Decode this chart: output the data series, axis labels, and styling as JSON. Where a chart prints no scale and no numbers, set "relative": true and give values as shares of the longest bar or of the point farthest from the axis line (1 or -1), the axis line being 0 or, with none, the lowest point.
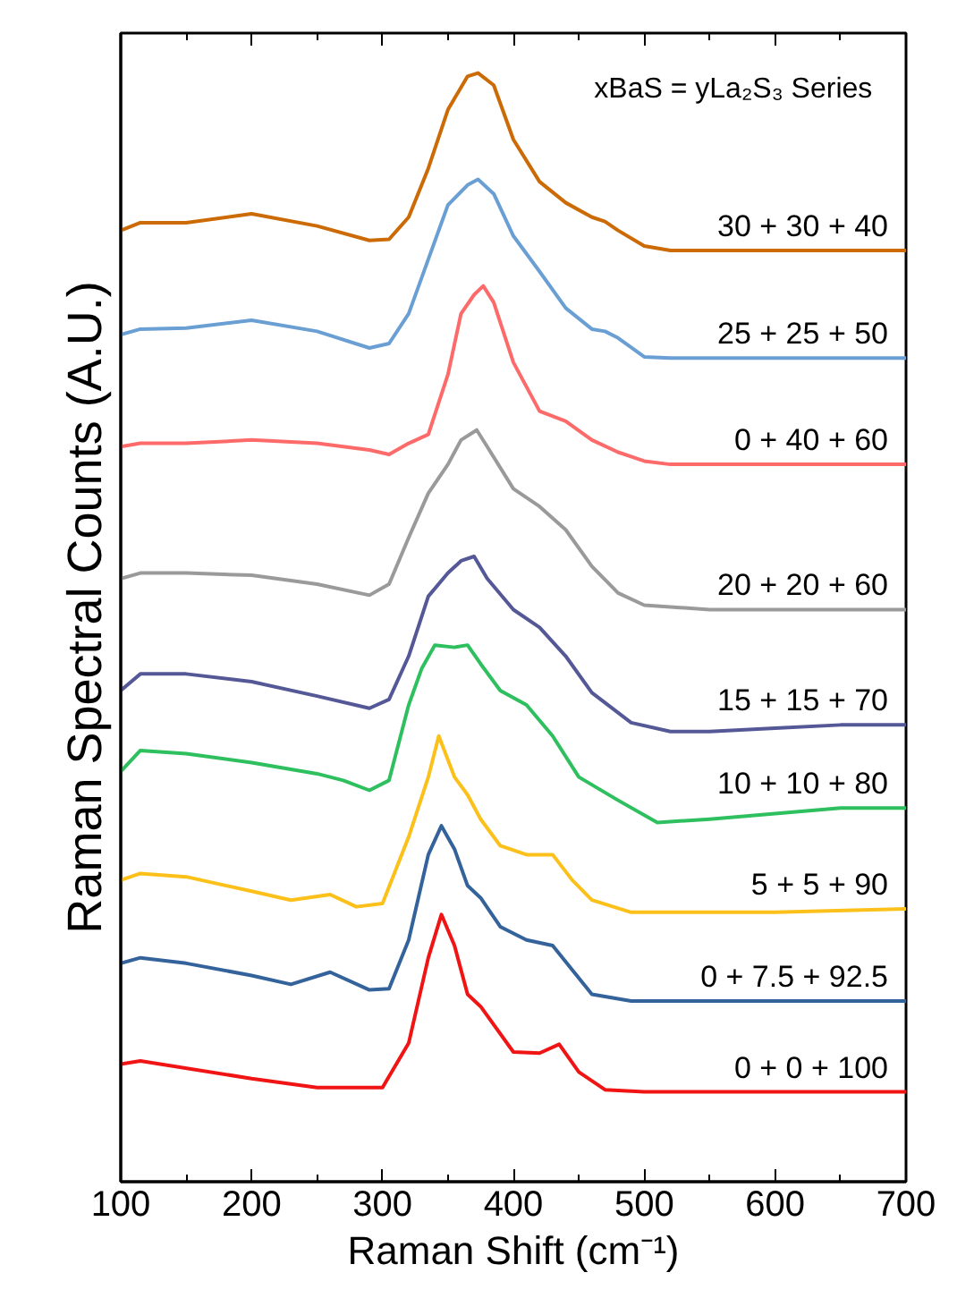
{
  "chart_data": {
    "type": "line",
    "relative": true,
    "xlabel": "Raman Shift (cm⁻¹)",
    "ylabel": "Raman Spectral Counts (A.U.)",
    "annotations": [
      "xBaS = yLa₂S₃ Series"
    ],
    "xlim": [
      100,
      700
    ],
    "xticks": [
      100,
      200,
      300,
      400,
      500,
      600,
      700
    ],
    "grid": false,
    "legend": false,
    "line_style": "solid",
    "marker": "none",
    "series": [
      {
        "name": "0 + 0 + 100",
        "color": "#f01414",
        "x": [
          100,
          115,
          200,
          250,
          300,
          320,
          335,
          345,
          355,
          365,
          375,
          400,
          420,
          435,
          450,
          470,
          500,
          600,
          700
        ],
        "values": [
          0.106,
          0.109,
          0.093,
          0.085,
          0.085,
          0.125,
          0.202,
          0.241,
          0.213,
          0.169,
          0.158,
          0.117,
          0.116,
          0.124,
          0.099,
          0.083,
          0.081,
          0.081,
          0.081
        ]
      },
      {
        "name": "0 + 7.5 + 92.5",
        "color": "#34639c",
        "x": [
          100,
          115,
          150,
          200,
          230,
          260,
          290,
          305,
          320,
          335,
          345,
          355,
          365,
          375,
          390,
          410,
          430,
          445,
          460,
          490,
          600,
          700
        ],
        "values": [
          0.197,
          0.202,
          0.197,
          0.186,
          0.178,
          0.189,
          0.173,
          0.174,
          0.218,
          0.295,
          0.321,
          0.3,
          0.267,
          0.256,
          0.23,
          0.218,
          0.213,
          0.191,
          0.169,
          0.163,
          0.163,
          0.163
        ]
      },
      {
        "name": "5 + 5 + 90",
        "color": "#fbc01a",
        "x": [
          100,
          115,
          150,
          200,
          230,
          260,
          280,
          300,
          320,
          335,
          343,
          355,
          365,
          375,
          390,
          410,
          430,
          445,
          460,
          490,
          600,
          700
        ],
        "values": [
          0.272,
          0.278,
          0.275,
          0.262,
          0.254,
          0.259,
          0.248,
          0.251,
          0.311,
          0.365,
          0.402,
          0.365,
          0.349,
          0.327,
          0.303,
          0.295,
          0.295,
          0.272,
          0.254,
          0.243,
          0.243,
          0.246
        ]
      },
      {
        "name": "10 + 10 + 80",
        "color": "#2ebf5e",
        "x": [
          100,
          115,
          150,
          200,
          250,
          270,
          290,
          305,
          320,
          330,
          340,
          355,
          365,
          375,
          390,
          410,
          430,
          450,
          480,
          510,
          550,
          600,
          650,
          700
        ],
        "values": [
          0.37,
          0.389,
          0.386,
          0.378,
          0.368,
          0.362,
          0.353,
          0.362,
          0.43,
          0.463,
          0.484,
          0.482,
          0.484,
          0.467,
          0.443,
          0.43,
          0.402,
          0.365,
          0.344,
          0.324,
          0.327,
          0.332,
          0.337,
          0.337
        ]
      },
      {
        "name": "15 + 15 + 70",
        "color": "#555897",
        "x": [
          100,
          115,
          150,
          200,
          250,
          290,
          305,
          320,
          335,
          350,
          360,
          370,
          380,
          400,
          420,
          440,
          460,
          490,
          520,
          550,
          600,
          650,
          700
        ],
        "values": [
          0.443,
          0.458,
          0.458,
          0.451,
          0.438,
          0.427,
          0.435,
          0.474,
          0.528,
          0.549,
          0.56,
          0.564,
          0.544,
          0.516,
          0.5,
          0.474,
          0.441,
          0.414,
          0.406,
          0.406,
          0.409,
          0.412,
          0.412
        ]
      },
      {
        "name": "20 + 20 + 60",
        "color": "#9a9a9a",
        "x": [
          100,
          115,
          150,
          200,
          250,
          290,
          305,
          320,
          335,
          350,
          360,
          372,
          380,
          400,
          420,
          440,
          460,
          480,
          500,
          550,
          600,
          700
        ],
        "values": [
          0.544,
          0.549,
          0.549,
          0.547,
          0.539,
          0.529,
          0.539,
          0.581,
          0.621,
          0.647,
          0.669,
          0.678,
          0.663,
          0.625,
          0.609,
          0.588,
          0.555,
          0.531,
          0.52,
          0.516,
          0.516,
          0.516
        ]
      },
      {
        "name": "0 + 40 + 60",
        "color": "#fd6a6a",
        "x": [
          100,
          115,
          150,
          200,
          250,
          290,
          305,
          320,
          335,
          350,
          360,
          370,
          377,
          385,
          400,
          420,
          440,
          460,
          480,
          500,
          520,
          600,
          700
        ],
        "values": [
          0.663,
          0.666,
          0.666,
          0.669,
          0.666,
          0.66,
          0.656,
          0.666,
          0.674,
          0.728,
          0.783,
          0.8,
          0.808,
          0.793,
          0.739,
          0.695,
          0.686,
          0.669,
          0.658,
          0.65,
          0.647,
          0.647,
          0.647
        ]
      },
      {
        "name": "25 + 25 + 50",
        "color": "#6a9fd4",
        "x": [
          100,
          115,
          150,
          200,
          250,
          290,
          305,
          320,
          335,
          350,
          365,
          373,
          385,
          400,
          420,
          440,
          460,
          470,
          480,
          500,
          520,
          600,
          700
        ],
        "values": [
          0.764,
          0.769,
          0.77,
          0.777,
          0.767,
          0.752,
          0.756,
          0.783,
          0.832,
          0.881,
          0.899,
          0.904,
          0.891,
          0.853,
          0.821,
          0.788,
          0.769,
          0.767,
          0.761,
          0.744,
          0.743,
          0.743,
          0.743
        ]
      },
      {
        "name": "30 + 30 + 40",
        "color": "#cc6a05",
        "x": [
          100,
          115,
          150,
          200,
          250,
          290,
          305,
          320,
          335,
          350,
          365,
          373,
          385,
          400,
          420,
          440,
          460,
          470,
          480,
          500,
          520,
          600,
          700
        ],
        "values": [
          0.858,
          0.865,
          0.865,
          0.873,
          0.862,
          0.849,
          0.85,
          0.87,
          0.914,
          0.967,
          0.997,
          1.0,
          0.989,
          0.94,
          0.902,
          0.883,
          0.87,
          0.866,
          0.858,
          0.844,
          0.84,
          0.84,
          0.84
        ]
      }
    ]
  }
}
